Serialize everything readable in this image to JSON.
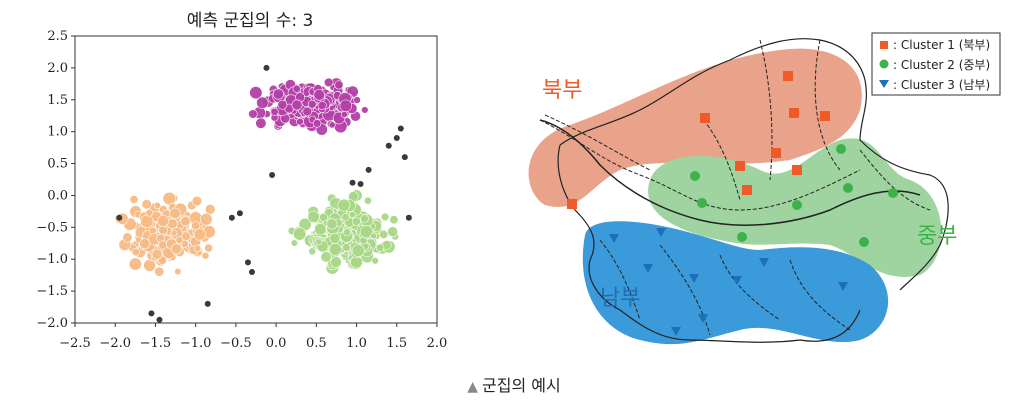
{
  "scatter": {
    "title": "예측 군집의 수: 3",
    "chart_data": {
      "type": "scatter",
      "title": "예측 군집의 수: 3",
      "xlim": [
        -2.5,
        2.0
      ],
      "ylim": [
        -2.0,
        2.5
      ],
      "xticks": [
        "−2.5",
        "−2.0",
        "−1.5",
        "−1.0",
        "−0.5",
        "0.0",
        "0.5",
        "1.0",
        "1.5",
        "2.0"
      ],
      "yticks": [
        "−2.0",
        "−1.5",
        "−1.0",
        "−0.5",
        "0.0",
        "0.5",
        "1.0",
        "1.5",
        "2.0",
        "2.5"
      ],
      "grid": false,
      "series": [
        {
          "color": "#b53fa8",
          "center": [
            0.45,
            1.4
          ],
          "spread": [
            0.45,
            0.25
          ],
          "count": 260
        },
        {
          "color": "#f7bb86",
          "center": [
            -1.35,
            -0.6
          ],
          "spread": [
            0.4,
            0.4
          ],
          "count": 260
        },
        {
          "color": "#a8d785",
          "center": [
            0.85,
            -0.6
          ],
          "spread": [
            0.45,
            0.4
          ],
          "count": 260
        },
        {
          "color": "#3a3a3a",
          "points": [
            [
              -0.12,
              2.0
            ],
            [
              -0.35,
              -1.05
            ],
            [
              -0.3,
              -1.2
            ],
            [
              -1.95,
              -0.35
            ],
            [
              -1.55,
              -1.85
            ],
            [
              -1.45,
              -1.95
            ],
            [
              -0.85,
              -1.7
            ],
            [
              -0.45,
              -0.28
            ],
            [
              -0.55,
              -0.35
            ],
            [
              1.55,
              1.05
            ],
            [
              1.5,
              0.9
            ],
            [
              1.6,
              0.6
            ],
            [
              1.4,
              0.78
            ],
            [
              1.15,
              0.4
            ],
            [
              1.05,
              0.18
            ],
            [
              1.65,
              -0.35
            ],
            [
              -0.05,
              0.32
            ],
            [
              0.95,
              0.2
            ]
          ]
        }
      ]
    }
  },
  "map": {
    "legend": [
      {
        "marker": "square",
        "color": "#f05a28",
        "label": ": Cluster 1 (북부)"
      },
      {
        "marker": "circle",
        "color": "#3cb34a",
        "label": ": Cluster 2 (중부)"
      },
      {
        "marker": "triangle",
        "color": "#1d6fb8",
        "label": ": Cluster 3 (남부)"
      }
    ],
    "regions": [
      {
        "label": "북부",
        "color": "#f05a28"
      },
      {
        "label": "중부",
        "color": "#3cb34a"
      },
      {
        "label": "남부",
        "color": "#1d6fb8"
      }
    ]
  },
  "caption": "군집의 예시"
}
